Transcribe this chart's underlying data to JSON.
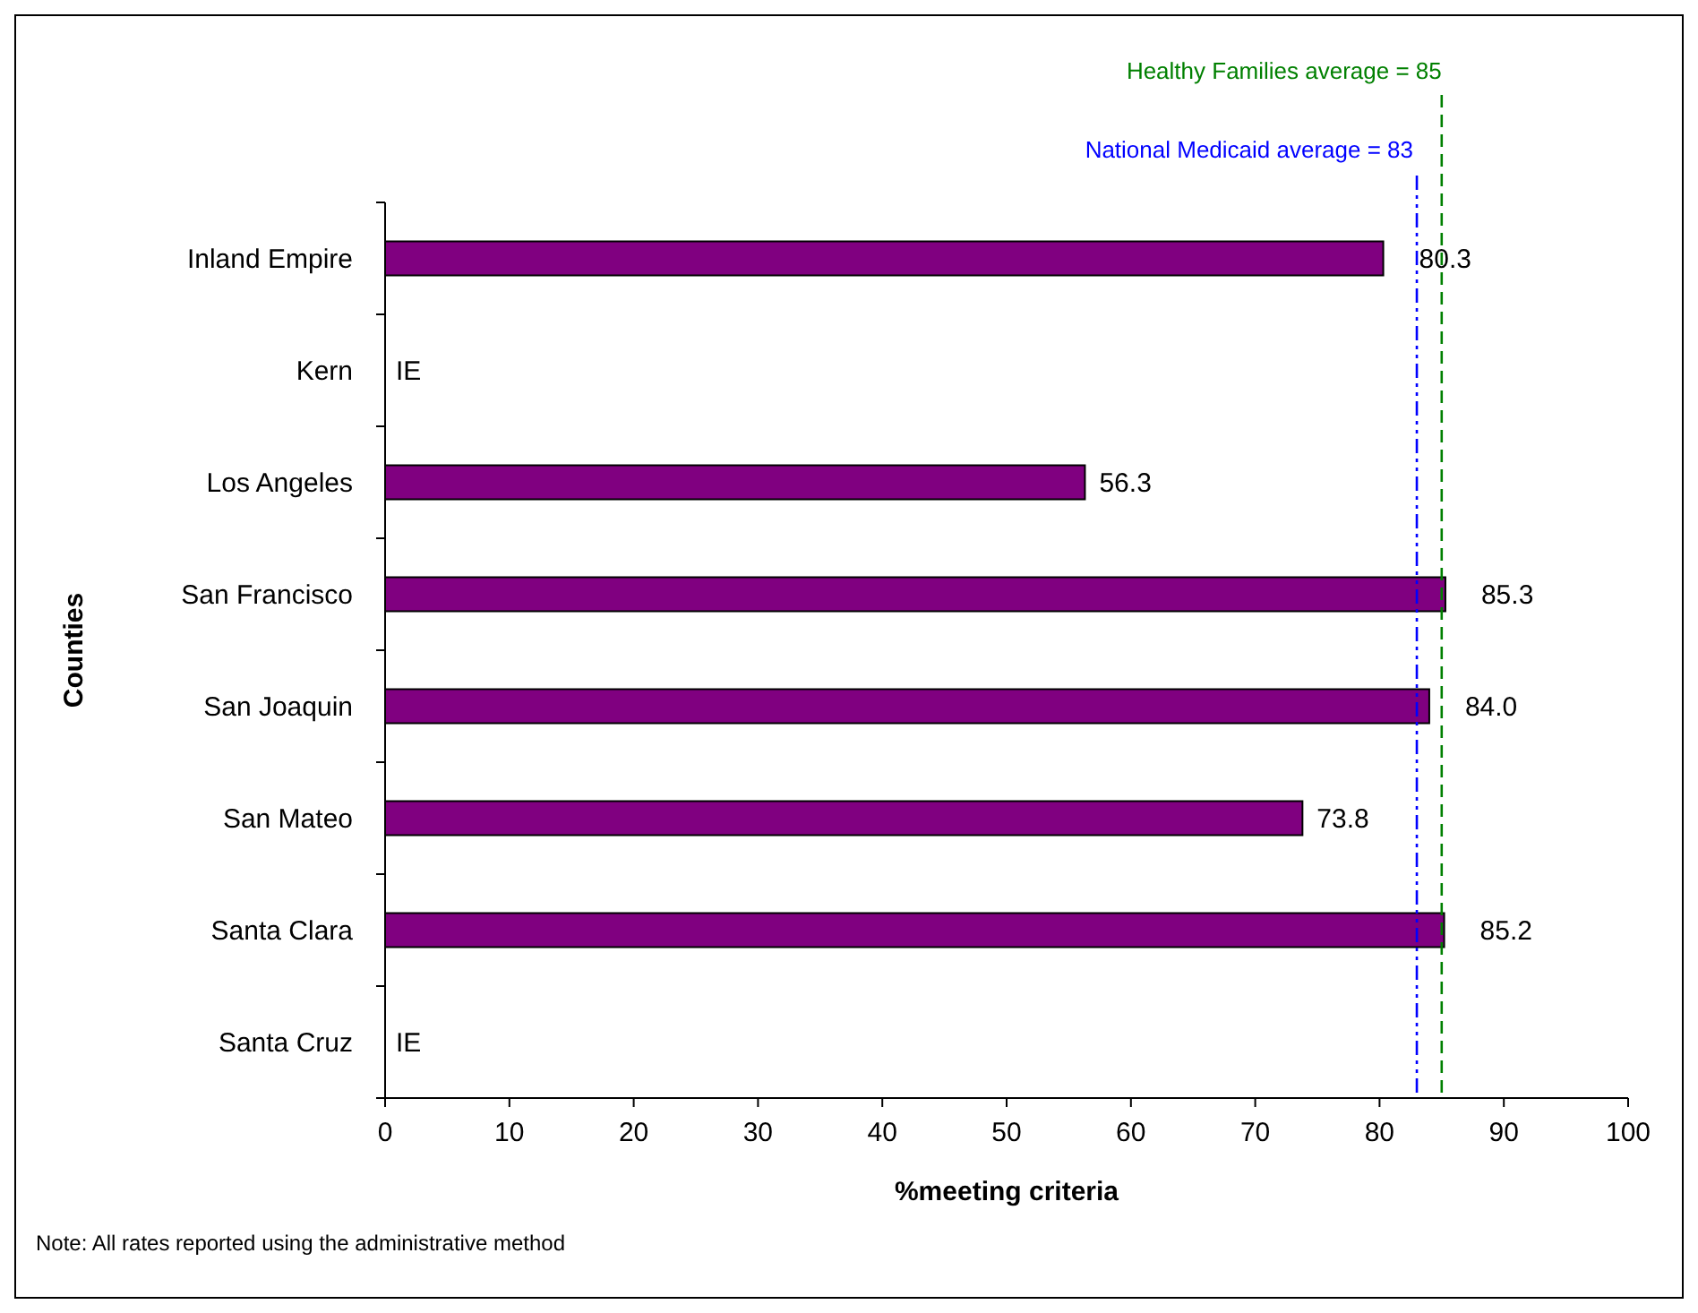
{
  "chart_data": {
    "type": "bar",
    "orientation": "horizontal",
    "xlabel": "%meeting criteria",
    "ylabel": "Counties",
    "categories": [
      "Inland Empire",
      "Kern",
      "Los Angeles",
      "San Francisco",
      "San Joaquin",
      "San Mateo",
      "Santa Clara",
      "Santa Cruz"
    ],
    "values": [
      80.3,
      null,
      56.3,
      85.3,
      84.0,
      73.8,
      85.2,
      null
    ],
    "value_labels": [
      "80.3",
      "IE",
      "56.3",
      "85.3",
      "84.0",
      "73.8",
      "85.2",
      "IE"
    ],
    "color": "#800080",
    "xlim": [
      0,
      100
    ],
    "xticks": [
      0,
      10,
      20,
      30,
      40,
      50,
      60,
      70,
      80,
      90,
      100
    ],
    "grid": false,
    "ref_lines": [
      {
        "axis": "x",
        "value": 85,
        "label": "Healthy Families average = 85",
        "color": "#008000",
        "line_style": "dashed"
      },
      {
        "axis": "x",
        "value": 83,
        "label": "National Medicaid average = 83",
        "color": "#0000ff",
        "line_style": "dashed"
      }
    ],
    "annotations": [
      "Note: All rates reported using the administrative method"
    ]
  }
}
